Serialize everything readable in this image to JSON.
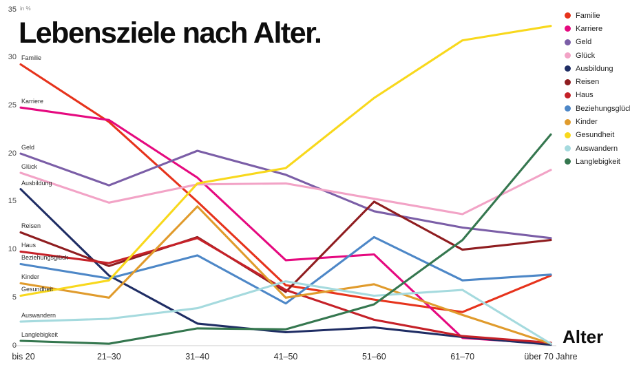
{
  "chart_data": {
    "type": "line",
    "title": "Lebensziele nach Alter.",
    "ylabel": "in %",
    "xlabel": "Alter",
    "ylim": [
      0,
      35
    ],
    "yticks": [
      0,
      5,
      10,
      15,
      20,
      25,
      30,
      35
    ],
    "grid": false,
    "legend_position": "top-right",
    "categories": [
      "bis 20",
      "21–30",
      "31–40",
      "41–50",
      "51–60",
      "61–70",
      "über 70 Jahre"
    ],
    "series": [
      {
        "name": "Familie",
        "color": "#e6331c",
        "values": [
          29.3,
          23.3,
          15.0,
          6.3,
          4.8,
          3.5,
          7.3
        ]
      },
      {
        "name": "Karriere",
        "color": "#e5097f",
        "values": [
          24.8,
          23.5,
          17.5,
          8.9,
          9.5,
          0.8,
          0.2
        ]
      },
      {
        "name": "Geld",
        "color": "#7b5ea7",
        "values": [
          20.0,
          16.7,
          20.3,
          17.8,
          14.0,
          12.3,
          11.2
        ]
      },
      {
        "name": "Glück",
        "color": "#f2a3c6",
        "values": [
          18.0,
          14.9,
          16.8,
          16.9,
          15.3,
          13.7,
          18.3
        ]
      },
      {
        "name": "Ausbildung",
        "color": "#1f2d64",
        "values": [
          16.3,
          7.3,
          2.3,
          1.4,
          1.9,
          0.9,
          0.1
        ]
      },
      {
        "name": "Reisen",
        "color": "#8f1d20",
        "values": [
          11.8,
          8.3,
          11.3,
          5.6,
          15.0,
          10.0,
          11.0
        ]
      },
      {
        "name": "Haus",
        "color": "#c52128",
        "values": [
          9.8,
          8.6,
          11.2,
          5.8,
          2.7,
          1.0,
          0.3
        ]
      },
      {
        "name": "Beziehungsglück",
        "color": "#4d87c7",
        "values": [
          8.5,
          7.0,
          9.4,
          4.4,
          11.3,
          6.8,
          7.4
        ]
      },
      {
        "name": "Kinder",
        "color": "#e09b2c",
        "values": [
          6.5,
          5.0,
          14.5,
          5.0,
          6.4,
          3.2,
          0.2
        ]
      },
      {
        "name": "Gesundheit",
        "color": "#f8d81c",
        "values": [
          5.2,
          6.8,
          16.9,
          18.5,
          25.8,
          31.8,
          33.3
        ]
      },
      {
        "name": "Auswandern",
        "color": "#a5dade",
        "values": [
          2.5,
          2.8,
          3.9,
          6.7,
          5.2,
          5.8,
          0.2
        ]
      },
      {
        "name": "Langlebigkeit",
        "color": "#35774f",
        "values": [
          0.5,
          0.2,
          1.8,
          1.7,
          4.3,
          11.0,
          22.0
        ]
      }
    ],
    "axis_color": "#cccccc"
  }
}
